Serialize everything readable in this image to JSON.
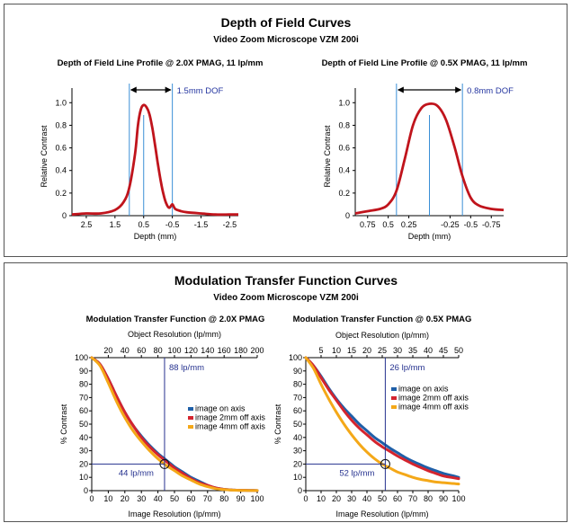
{
  "dof": {
    "title": "Depth of Field Curves",
    "subtitle": "Video Zoom Microscope VZM 200i"
  },
  "mtf": {
    "title": "Modulation Transfer Function Curves",
    "subtitle": "Video Zoom Microscope VZM 200i"
  },
  "chart_data": [
    {
      "type": "line",
      "title": "Depth of Field Line Profile @ 2.0X PMAG, 11 lp/mm",
      "xlabel": "Depth (mm)",
      "ylabel": "Relative Contrast",
      "x_ticks": [
        "2.5",
        "1.5",
        "0.5",
        "-0.5",
        "-1.5",
        "-2.5"
      ],
      "y_ticks": [
        "0",
        "0.2",
        "0.4",
        "0.6",
        "0.8",
        "1.0"
      ],
      "xlim": [
        3.0,
        -2.8
      ],
      "ylim": [
        0,
        1.05
      ],
      "annotation": "1.5mm DOF",
      "dof_range": [
        1.0,
        -0.5
      ],
      "center_line": 0.5,
      "color": "#c0141c",
      "x": [
        3.0,
        2.5,
        2.0,
        1.5,
        1.2,
        1.0,
        0.8,
        0.7,
        0.6,
        0.5,
        0.4,
        0.3,
        0.2,
        0.1,
        0.0,
        -0.1,
        -0.2,
        -0.3,
        -0.4,
        -0.5,
        -0.6,
        -0.8,
        -1.0,
        -1.5,
        -2.0,
        -2.5,
        -2.8
      ],
      "y": [
        0.01,
        0.02,
        0.02,
        0.05,
        0.12,
        0.25,
        0.55,
        0.8,
        0.94,
        0.98,
        0.96,
        0.9,
        0.78,
        0.62,
        0.45,
        0.3,
        0.18,
        0.1,
        0.07,
        0.1,
        0.06,
        0.04,
        0.03,
        0.02,
        0.01,
        0.01,
        0.01
      ]
    },
    {
      "type": "line",
      "title": "Depth of Field Line Profile @ 0.5X PMAG, 11 lp/mm",
      "xlabel": "Depth (mm)",
      "ylabel": "Relative Contrast",
      "x_ticks": [
        "0.75",
        "0.5",
        "0.25",
        "-0.25",
        "-0.5",
        "-0.75"
      ],
      "tick_positions": [
        0.75,
        0.5,
        0.25,
        -0.25,
        -0.5,
        -0.75
      ],
      "y_ticks": [
        "0",
        "0.2",
        "0.4",
        "0.6",
        "0.8",
        "1.0"
      ],
      "xlim": [
        0.9,
        -0.9
      ],
      "ylim": [
        0,
        1.05
      ],
      "annotation": "0.8mm DOF",
      "dof_range": [
        0.4,
        -0.4
      ],
      "center_line": 0.0,
      "color": "#c0141c",
      "x": [
        0.9,
        0.75,
        0.6,
        0.5,
        0.4,
        0.3,
        0.2,
        0.1,
        0.0,
        -0.1,
        -0.2,
        -0.3,
        -0.4,
        -0.5,
        -0.6,
        -0.75,
        -0.9
      ],
      "y": [
        0.02,
        0.04,
        0.06,
        0.1,
        0.22,
        0.5,
        0.8,
        0.95,
        0.99,
        0.97,
        0.85,
        0.62,
        0.35,
        0.16,
        0.09,
        0.06,
        0.05
      ]
    },
    {
      "type": "line",
      "title": "Modulation Transfer Function @ 2.0X PMAG",
      "xlabel": "Image Resolution (lp/mm)",
      "ylabel": "% Contrast",
      "x2label": "Object Resolution (lp/mm)",
      "x_ticks": [
        0,
        10,
        20,
        30,
        40,
        50,
        60,
        70,
        80,
        90,
        100
      ],
      "x2_ticks": [
        20,
        40,
        60,
        80,
        100,
        120,
        140,
        160,
        180,
        200
      ],
      "x2_scale": 2.0,
      "y_ticks": [
        0,
        10,
        20,
        30,
        40,
        50,
        60,
        70,
        80,
        90,
        100
      ],
      "xlim": [
        0,
        100
      ],
      "ylim": [
        0,
        100
      ],
      "ref_lines": {
        "x": 44,
        "y": 20
      },
      "annotations": [
        "88 lp/mm",
        "44 lp/mm"
      ],
      "series": [
        {
          "name": "image on axis",
          "color": "#1f5fa8",
          "x": [
            0,
            5,
            10,
            15,
            20,
            25,
            30,
            35,
            40,
            45,
            50,
            55,
            60,
            65,
            70,
            75,
            80,
            85,
            90,
            95,
            100
          ],
          "y": [
            100,
            95,
            84,
            71,
            59,
            49,
            41,
            34,
            28,
            23,
            18,
            14,
            10,
            7,
            4,
            2,
            1,
            0.5,
            0.3,
            0.2,
            0.1
          ]
        },
        {
          "name": "image 2mm off axis",
          "color": "#d4242e",
          "x": [
            0,
            5,
            10,
            15,
            20,
            25,
            30,
            35,
            40,
            45,
            50,
            55,
            60,
            65,
            70,
            75,
            80,
            85,
            90,
            95,
            100
          ],
          "y": [
            100,
            95,
            84,
            71,
            59,
            49,
            40,
            33,
            27,
            22,
            17,
            13,
            9,
            6,
            4,
            2,
            1,
            0.5,
            0.3,
            0.2,
            0.1
          ]
        },
        {
          "name": "image 4mm off axis",
          "color": "#f4a818",
          "x": [
            0,
            5,
            10,
            15,
            20,
            25,
            30,
            35,
            40,
            45,
            50,
            55,
            60,
            65,
            70,
            75,
            80,
            85,
            90,
            95,
            100
          ],
          "y": [
            100,
            94,
            81,
            67,
            55,
            45,
            37,
            30,
            24,
            19,
            15,
            11,
            8,
            5,
            3,
            1.5,
            0.8,
            0.4,
            0.2,
            0.1,
            0.1
          ]
        }
      ]
    },
    {
      "type": "line",
      "title": "Modulation Transfer Function @ 0.5X PMAG",
      "xlabel": "Image Resolution (lp/mm)",
      "ylabel": "% Contrast",
      "x2label": "Object Resolution (lp/mm)",
      "x_ticks": [
        0,
        10,
        20,
        30,
        40,
        50,
        60,
        70,
        80,
        90,
        100
      ],
      "x2_ticks": [
        5,
        10,
        15,
        20,
        25,
        30,
        35,
        40,
        45,
        50
      ],
      "x2_scale": 0.5,
      "y_ticks": [
        0,
        10,
        20,
        30,
        40,
        50,
        60,
        70,
        80,
        90,
        100
      ],
      "xlim": [
        0,
        100
      ],
      "ylim": [
        0,
        100
      ],
      "ref_lines": {
        "x": 52,
        "y": 20
      },
      "annotations": [
        "26 lp/mm",
        "52 lp/mm"
      ],
      "series": [
        {
          "name": "image on axis",
          "color": "#1f5fa8",
          "x": [
            0,
            5,
            10,
            15,
            20,
            25,
            30,
            35,
            40,
            45,
            50,
            55,
            60,
            65,
            70,
            75,
            80,
            85,
            90,
            95,
            100
          ],
          "y": [
            100,
            94,
            86,
            77,
            69,
            62,
            56,
            50,
            45,
            40,
            36,
            32,
            28.5,
            25,
            22,
            19.5,
            17,
            15,
            13,
            11.5,
            10
          ]
        },
        {
          "name": "image 2mm off axis",
          "color": "#d4242e",
          "x": [
            0,
            5,
            10,
            15,
            20,
            25,
            30,
            35,
            40,
            45,
            50,
            55,
            60,
            65,
            70,
            75,
            80,
            85,
            90,
            95,
            100
          ],
          "y": [
            100,
            94,
            85,
            76,
            68,
            60,
            53,
            47,
            42,
            37,
            33,
            29.5,
            26,
            23,
            20,
            17.5,
            15,
            13,
            11,
            10,
            9
          ]
        },
        {
          "name": "image 4mm off axis",
          "color": "#f4a818",
          "x": [
            0,
            5,
            10,
            15,
            20,
            25,
            30,
            35,
            40,
            45,
            50,
            55,
            60,
            65,
            70,
            75,
            80,
            85,
            90,
            95,
            100
          ],
          "y": [
            100,
            92,
            80,
            69,
            59,
            50,
            42,
            35,
            29,
            24,
            20,
            17,
            14,
            12,
            10,
            8.5,
            7.5,
            6.5,
            6,
            5.5,
            5
          ]
        }
      ]
    }
  ]
}
